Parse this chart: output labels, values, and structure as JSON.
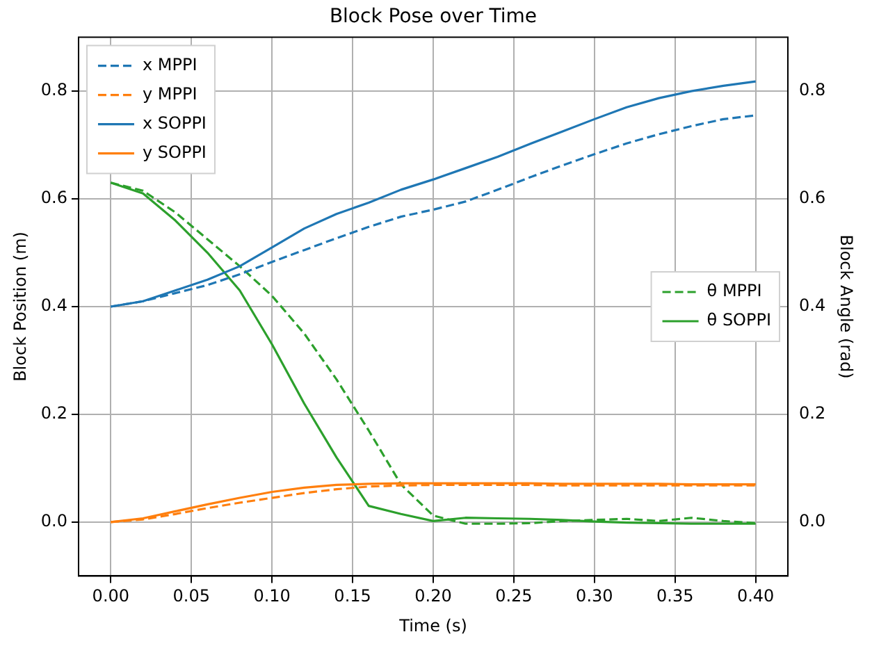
{
  "chart_data": {
    "type": "line",
    "title": "Block Pose over Time",
    "xlabel": "Time (s)",
    "ylabel": "Block Position (m)",
    "y2label": "Block Angle (rad)",
    "x": [
      0,
      0.02,
      0.04,
      0.06,
      0.08,
      0.1,
      0.12,
      0.14,
      0.16,
      0.18,
      0.2,
      0.22,
      0.24,
      0.26,
      0.28,
      0.3,
      0.32,
      0.34,
      0.36,
      0.38,
      0.4
    ],
    "xlim": [
      -0.02,
      0.42
    ],
    "xticks": [
      {
        "value": 0,
        "label": "0.00"
      },
      {
        "value": 0.05,
        "label": "0.05"
      },
      {
        "value": 0.1,
        "label": "0.10"
      },
      {
        "value": 0.15,
        "label": "0.15"
      },
      {
        "value": 0.2,
        "label": "0.20"
      },
      {
        "value": 0.25,
        "label": "0.25"
      },
      {
        "value": 0.3,
        "label": "0.30"
      },
      {
        "value": 0.35,
        "label": "0.35"
      },
      {
        "value": 0.4,
        "label": "0.40"
      }
    ],
    "ylim": [
      -0.1,
      0.9
    ],
    "yticks": [
      {
        "value": 0,
        "label": "0.0"
      },
      {
        "value": 0.2,
        "label": "0.2"
      },
      {
        "value": 0.4,
        "label": "0.4"
      },
      {
        "value": 0.6,
        "label": "0.6"
      },
      {
        "value": 0.8,
        "label": "0.8"
      }
    ],
    "y2lim": [
      -0.1,
      0.9
    ],
    "y2ticks": [
      {
        "value": 0,
        "label": "0.0"
      },
      {
        "value": 0.2,
        "label": "0.2"
      },
      {
        "value": 0.4,
        "label": "0.4"
      },
      {
        "value": 0.6,
        "label": "0.6"
      },
      {
        "value": 0.8,
        "label": "0.8"
      }
    ],
    "grid": true,
    "legend": "top left",
    "marker": "none",
    "series": [
      {
        "name": "x MPPI",
        "color": "#1f77b4",
        "line_style": "dashed",
        "values": [
          0.4,
          0.41,
          0.425,
          0.44,
          0.46,
          0.483,
          0.505,
          0.527,
          0.548,
          0.567,
          0.58,
          0.595,
          0.617,
          0.64,
          0.662,
          0.683,
          0.703,
          0.72,
          0.735,
          0.748,
          0.755
        ]
      },
      {
        "name": "y MPPI",
        "color": "#ff7f0e",
        "line_style": "dashed",
        "values": [
          0,
          0.005,
          0.015,
          0.026,
          0.036,
          0.045,
          0.054,
          0.061,
          0.066,
          0.068,
          0.069,
          0.069,
          0.069,
          0.069,
          0.068,
          0.068,
          0.068,
          0.068,
          0.068,
          0.068,
          0.068
        ]
      },
      {
        "name": "x SOPPI",
        "color": "#1f77b4",
        "line_style": "solid",
        "values": [
          0.4,
          0.41,
          0.43,
          0.45,
          0.475,
          0.51,
          0.545,
          0.572,
          0.593,
          0.617,
          0.636,
          0.657,
          0.678,
          0.702,
          0.725,
          0.748,
          0.77,
          0.787,
          0.8,
          0.81,
          0.818
        ]
      },
      {
        "name": "y SOPPI",
        "color": "#ff7f0e",
        "line_style": "solid",
        "values": [
          0,
          0.007,
          0.02,
          0.033,
          0.045,
          0.056,
          0.064,
          0.069,
          0.071,
          0.072,
          0.072,
          0.072,
          0.072,
          0.072,
          0.071,
          0.071,
          0.071,
          0.071,
          0.07,
          0.07,
          0.07
        ]
      },
      {
        "name": "θ MPPI",
        "color": "#2ca02c",
        "line_style": "dashed",
        "axis": "y2",
        "values": [
          0.63,
          0.615,
          0.575,
          0.525,
          0.475,
          0.42,
          0.35,
          0.265,
          0.17,
          0.07,
          0.012,
          -0.003,
          -0.003,
          -0.002,
          0.002,
          0.004,
          0.006,
          0.002,
          0.008,
          0.002,
          -0.002
        ]
      },
      {
        "name": "θ SOPPI",
        "color": "#2ca02c",
        "line_style": "solid",
        "axis": "y2",
        "values": [
          0.63,
          0.61,
          0.56,
          0.5,
          0.43,
          0.33,
          0.22,
          0.12,
          0.03,
          0.015,
          0.002,
          0.008,
          0.007,
          0.006,
          0.004,
          0.001,
          -0.001,
          -0.002,
          -0.003,
          -0.003,
          -0.003
        ]
      }
    ]
  }
}
